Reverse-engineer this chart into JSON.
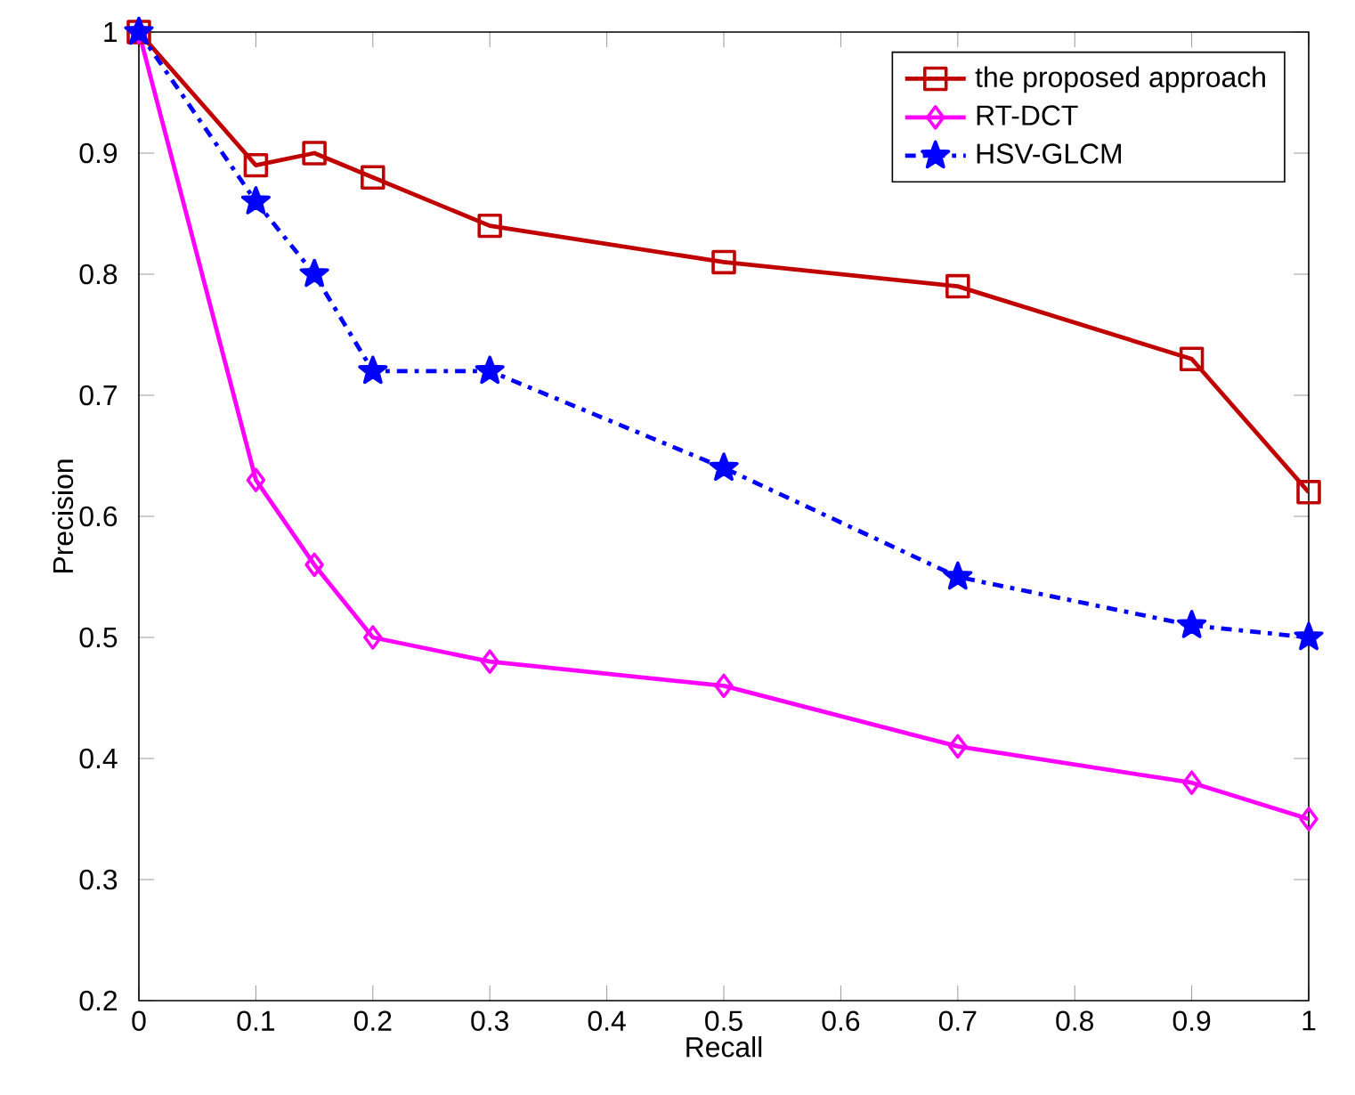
{
  "chart_data": {
    "type": "line",
    "xlabel": "Recall",
    "ylabel": "Precision",
    "x": [
      0,
      0.1,
      0.15,
      0.2,
      0.3,
      0.5,
      0.7,
      0.9,
      1
    ],
    "series": [
      {
        "name": "the proposed approach",
        "color": "#c00000",
        "marker": "square",
        "line_style": "solid",
        "values": [
          1,
          0.89,
          0.9,
          0.88,
          0.84,
          0.81,
          0.79,
          0.73,
          0.62
        ]
      },
      {
        "name": "RT-DCT",
        "color": "#ff00ff",
        "marker": "diamond",
        "line_style": "solid",
        "values": [
          1,
          0.63,
          0.56,
          0.5,
          0.48,
          0.46,
          0.41,
          0.38,
          0.35
        ]
      },
      {
        "name": "HSV-GLCM",
        "color": "#0000ff",
        "marker": "star",
        "line_style": "dashdot",
        "values": [
          1,
          0.86,
          0.8,
          0.72,
          0.72,
          0.64,
          0.55,
          0.51,
          0.5
        ]
      }
    ],
    "xlim": [
      0,
      1
    ],
    "ylim": [
      0.2,
      1
    ],
    "xticks": [
      0,
      0.1,
      0.2,
      0.3,
      0.4,
      0.5,
      0.6,
      0.7,
      0.8,
      0.9,
      1
    ],
    "yticks": [
      0.2,
      0.3,
      0.4,
      0.5,
      0.6,
      0.7,
      0.8,
      0.9,
      1
    ],
    "grid": false,
    "legend": "top right"
  }
}
